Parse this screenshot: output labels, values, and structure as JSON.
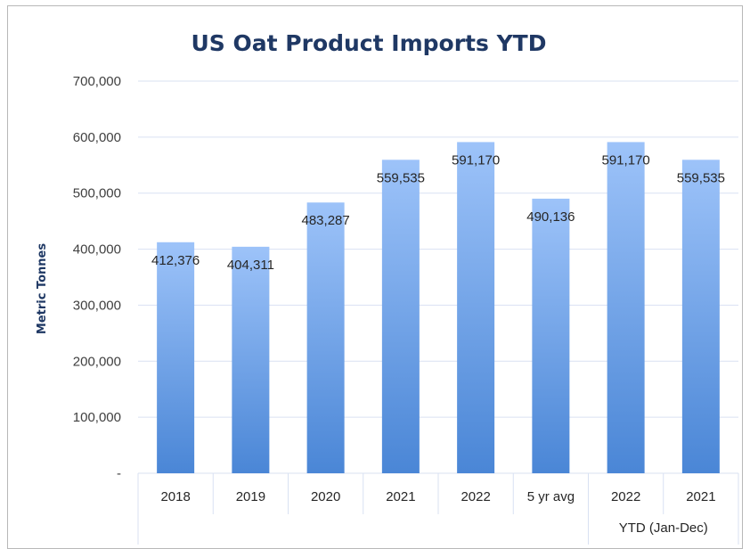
{
  "chart_data": {
    "type": "bar",
    "title": "US Oat Product Imports YTD",
    "ylabel": "Metric Tonnes",
    "xlabel": "",
    "ylim": [
      0,
      700000
    ],
    "yticks": [
      0,
      100000,
      200000,
      300000,
      400000,
      500000,
      600000,
      700000
    ],
    "ytick_labels": [
      "-",
      "100,000",
      "200,000",
      "300,000",
      "400,000",
      "500,000",
      "600,000",
      "700,000"
    ],
    "categories": [
      "2018",
      "2019",
      "2020",
      "2021",
      "2022",
      "5 yr avg",
      "2022",
      "2021"
    ],
    "values": [
      412376,
      404311,
      483287,
      559535,
      591170,
      490136,
      591170,
      559535
    ],
    "data_labels": [
      "412,376",
      "404,311",
      "483,287",
      "559,535",
      "591,170",
      "490,136",
      "591,170",
      "559,535"
    ],
    "group_label": "YTD (Jan-Dec)",
    "grid": true,
    "legend": "none",
    "colors": {
      "bar_top": "#9dc3f9",
      "bar_bottom": "#4a86d6",
      "title": "#1f3864",
      "grid": "#d9e1f2"
    }
  }
}
